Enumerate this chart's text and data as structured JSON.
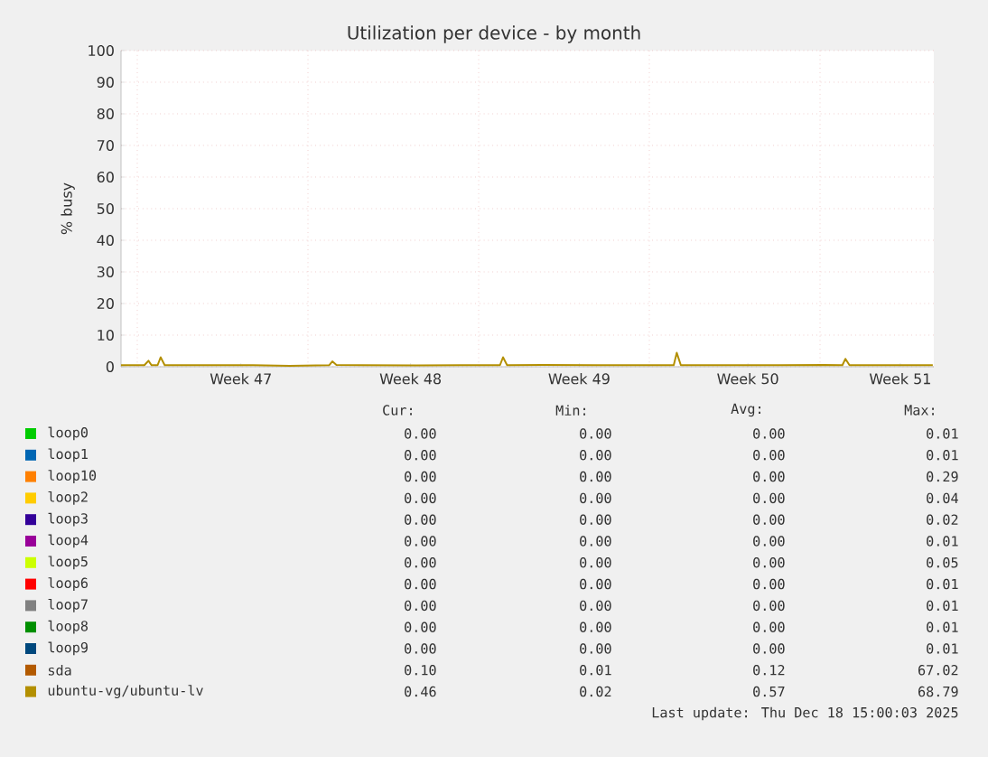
{
  "chart_data": {
    "type": "line",
    "title": "Utilization per device - by month",
    "ylabel": "% busy",
    "x": [
      "2025-11-16T08:00",
      "2025-11-17T07:00",
      "2025-11-17T11:00",
      "2025-11-17T14:00",
      "2025-11-17T20:00",
      "2025-11-17T23:00",
      "2025-11-18T03:00",
      "2025-11-20T06:00",
      "2025-11-21T18:00",
      "2025-11-23T06:00",
      "2025-11-24T21:00",
      "2025-11-25T00:00",
      "2025-11-25T04:00",
      "2025-11-26T05:00",
      "2025-11-28T11:00",
      "2025-11-30T16:00",
      "2025-12-01T21:00",
      "2025-12-02T00:00",
      "2025-12-02T04:00",
      "2025-12-03T15:00",
      "2025-12-05T21:00",
      "2025-12-07T18:00",
      "2025-12-09T00:00",
      "2025-12-09T03:00",
      "2025-12-09T07:00",
      "2025-12-11T02:00",
      "2025-12-13T07:00",
      "2025-12-15T04:00",
      "2025-12-15T22:00",
      "2025-12-16T01:00",
      "2025-12-16T05:00",
      "2025-12-17T18:00",
      "2025-12-19T15:00"
    ],
    "xlim": [
      "2025-11-16T08:00",
      "2025-12-19T16:00"
    ],
    "xticks": [
      {
        "value": "2025-11-17T00:00",
        "label": null
      },
      {
        "value": "2025-11-21T06:00",
        "label": "Week 47"
      },
      {
        "value": "2025-11-24T00:00",
        "label": null
      },
      {
        "value": "2025-11-28T05:00",
        "label": "Week 48"
      },
      {
        "value": "2025-12-01T00:00",
        "label": null
      },
      {
        "value": "2025-12-05T03:00",
        "label": "Week 49"
      },
      {
        "value": "2025-12-08T00:00",
        "label": null
      },
      {
        "value": "2025-12-12T01:00",
        "label": "Week 50"
      },
      {
        "value": "2025-12-15T00:00",
        "label": null
      },
      {
        "value": "2025-12-18T07:00",
        "label": "Week 51"
      }
    ],
    "ylim": [
      0,
      100
    ],
    "yticks": [
      0,
      10,
      20,
      30,
      40,
      50,
      60,
      70,
      80,
      90,
      100
    ],
    "grid": true,
    "legend": "bottom",
    "series": [
      {
        "name": "loop0",
        "color": "#00cc00",
        "values": [
          null,
          null,
          null,
          null,
          null,
          null,
          null,
          null,
          null,
          null,
          null,
          null,
          null,
          null,
          null,
          null,
          null,
          null,
          null,
          null,
          null,
          null,
          null,
          null,
          null,
          null,
          null,
          null,
          null,
          null,
          null,
          null,
          null
        ]
      },
      {
        "name": "loop1",
        "color": "#0066b3",
        "values": [
          null,
          null,
          null,
          null,
          null,
          null,
          null,
          null,
          null,
          null,
          null,
          null,
          null,
          null,
          null,
          null,
          null,
          null,
          null,
          null,
          null,
          null,
          null,
          null,
          null,
          null,
          null,
          null,
          null,
          null,
          null,
          null,
          null
        ]
      },
      {
        "name": "loop10",
        "color": "#ff8000",
        "values": [
          null,
          null,
          null,
          null,
          null,
          null,
          null,
          null,
          null,
          null,
          null,
          null,
          null,
          null,
          null,
          null,
          null,
          null,
          null,
          null,
          null,
          null,
          null,
          null,
          null,
          null,
          null,
          null,
          null,
          null,
          null,
          null,
          null
        ]
      },
      {
        "name": "loop2",
        "color": "#ffcc00",
        "values": [
          null,
          null,
          null,
          null,
          null,
          null,
          null,
          null,
          null,
          null,
          null,
          null,
          null,
          null,
          null,
          null,
          null,
          null,
          null,
          null,
          null,
          null,
          null,
          null,
          null,
          null,
          null,
          null,
          null,
          null,
          null,
          null,
          null
        ]
      },
      {
        "name": "loop3",
        "color": "#330099",
        "values": [
          null,
          null,
          null,
          null,
          null,
          null,
          null,
          null,
          null,
          null,
          null,
          null,
          null,
          null,
          null,
          null,
          null,
          null,
          null,
          null,
          null,
          null,
          null,
          null,
          null,
          null,
          null,
          null,
          null,
          null,
          null,
          null,
          null
        ]
      },
      {
        "name": "loop4",
        "color": "#990099",
        "values": [
          null,
          null,
          null,
          null,
          null,
          null,
          null,
          null,
          null,
          null,
          null,
          null,
          null,
          null,
          null,
          null,
          null,
          null,
          null,
          null,
          null,
          null,
          null,
          null,
          null,
          null,
          null,
          null,
          null,
          null,
          null,
          null,
          null
        ]
      },
      {
        "name": "loop5",
        "color": "#ccff00",
        "values": [
          null,
          null,
          null,
          null,
          null,
          null,
          null,
          null,
          null,
          null,
          null,
          null,
          null,
          null,
          null,
          null,
          null,
          null,
          null,
          null,
          null,
          null,
          null,
          null,
          null,
          null,
          null,
          null,
          null,
          null,
          null,
          null,
          null
        ]
      },
      {
        "name": "loop6",
        "color": "#ff0000",
        "values": [
          null,
          null,
          null,
          null,
          null,
          null,
          null,
          null,
          null,
          null,
          null,
          null,
          null,
          null,
          null,
          null,
          null,
          null,
          null,
          null,
          null,
          null,
          null,
          null,
          null,
          null,
          null,
          null,
          null,
          null,
          null,
          null,
          null
        ]
      },
      {
        "name": "loop7",
        "color": "#808080",
        "values": [
          null,
          null,
          null,
          null,
          null,
          null,
          null,
          null,
          null,
          null,
          null,
          null,
          null,
          null,
          null,
          null,
          null,
          null,
          null,
          null,
          null,
          null,
          null,
          null,
          null,
          null,
          null,
          null,
          null,
          null,
          null,
          null,
          null
        ]
      },
      {
        "name": "loop8",
        "color": "#008f00",
        "values": [
          null,
          null,
          null,
          null,
          null,
          null,
          null,
          null,
          null,
          null,
          null,
          null,
          null,
          null,
          null,
          null,
          null,
          null,
          null,
          null,
          null,
          null,
          null,
          null,
          null,
          null,
          null,
          null,
          null,
          null,
          null,
          null,
          null
        ]
      },
      {
        "name": "loop9",
        "color": "#00487d",
        "values": [
          null,
          null,
          null,
          null,
          null,
          null,
          null,
          null,
          null,
          null,
          null,
          null,
          null,
          null,
          null,
          null,
          null,
          null,
          null,
          null,
          null,
          null,
          null,
          null,
          null,
          null,
          null,
          null,
          null,
          null,
          null,
          null,
          null
        ]
      },
      {
        "name": "sda",
        "color": "#b35a00",
        "values": [
          null,
          null,
          null,
          null,
          null,
          null,
          null,
          null,
          null,
          null,
          null,
          null,
          null,
          null,
          null,
          null,
          null,
          null,
          null,
          null,
          null,
          null,
          null,
          null,
          null,
          null,
          null,
          null,
          null,
          null,
          null,
          null,
          null
        ]
      },
      {
        "name": "ubuntu-vg/ubuntu-lv",
        "color": "#b38f00",
        "values": [
          0.5,
          0.5,
          1.9,
          0.5,
          0.5,
          3.0,
          0.5,
          0.5,
          0.5,
          0.3,
          0.5,
          1.7,
          0.6,
          0.5,
          0.4,
          0.5,
          0.5,
          3.0,
          0.5,
          0.6,
          0.5,
          0.5,
          0.5,
          4.4,
          0.5,
          0.5,
          0.5,
          0.6,
          0.5,
          2.5,
          0.5,
          0.5,
          0.5
        ]
      }
    ],
    "annotations": [
      "Cur:",
      "Min:",
      "Avg:",
      "Max:",
      "0.00",
      "0.00",
      "0.00",
      "0.01",
      "0.00",
      "0.00",
      "0.00",
      "0.01",
      "0.00",
      "0.00",
      "0.00",
      "0.29",
      "0.00",
      "0.00",
      "0.00",
      "0.04",
      "0.00",
      "0.00",
      "0.00",
      "0.02",
      "0.00",
      "0.00",
      "0.00",
      "0.01",
      "0.00",
      "0.00",
      "0.00",
      "0.05",
      "0.00",
      "0.00",
      "0.00",
      "0.01",
      "0.00",
      "0.00",
      "0.00",
      "0.01",
      "0.00",
      "0.00",
      "0.00",
      "0.01",
      "0.00",
      "0.00",
      "0.00",
      "0.01",
      "0.10",
      "0.01",
      "0.12",
      "67.02",
      "0.46",
      "0.02",
      "0.57",
      "68.79",
      "Last update: Thu Dec 18 15:00:03 2025"
    ]
  }
}
